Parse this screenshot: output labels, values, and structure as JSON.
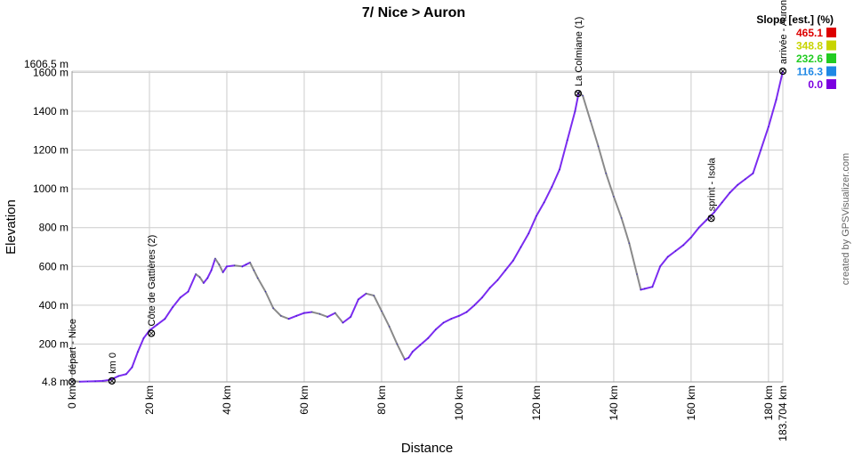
{
  "chart_data": {
    "type": "line",
    "title": "7/ Nice > Auron",
    "xlabel": "Distance",
    "ylabel": "Elevation",
    "xlim": [
      0,
      183.704
    ],
    "ylim": [
      4.8,
      1606.5
    ],
    "grid": true,
    "x_ticks": [
      {
        "value": 0,
        "label": "0 km"
      },
      {
        "value": 20,
        "label": "20 km"
      },
      {
        "value": 40,
        "label": "40 km"
      },
      {
        "value": 60,
        "label": "60 km"
      },
      {
        "value": 80,
        "label": "80 km"
      },
      {
        "value": 100,
        "label": "100 km"
      },
      {
        "value": 120,
        "label": "120 km"
      },
      {
        "value": 140,
        "label": "140 km"
      },
      {
        "value": 160,
        "label": "160 km"
      },
      {
        "value": 180,
        "label": "180 km"
      },
      {
        "value": 183.704,
        "label": "183.704 km"
      }
    ],
    "y_ticks": [
      {
        "value": 4.8,
        "label": "4.8 m"
      },
      {
        "value": 200,
        "label": "200 m"
      },
      {
        "value": 400,
        "label": "400 m"
      },
      {
        "value": 600,
        "label": "600 m"
      },
      {
        "value": 800,
        "label": "800 m"
      },
      {
        "value": 1000,
        "label": "1000 m"
      },
      {
        "value": 1200,
        "label": "1200 m"
      },
      {
        "value": 1400,
        "label": "1400 m"
      },
      {
        "value": 1600,
        "label": "1600 m"
      },
      {
        "value": 1606.5,
        "label": "1606.5 m"
      }
    ],
    "series": [
      {
        "x": [
          0,
          2,
          4,
          6,
          8,
          10,
          12,
          14,
          15.5,
          17,
          18.5,
          20,
          22,
          24,
          26,
          28,
          30,
          32,
          33,
          34,
          35,
          36,
          37,
          38,
          39,
          40,
          42,
          44,
          45,
          46,
          47,
          48,
          50,
          52,
          54,
          56,
          58,
          60,
          62,
          64,
          66,
          68,
          70,
          72,
          74,
          76,
          78,
          80,
          82,
          84,
          86,
          87,
          88,
          90,
          92,
          94,
          96,
          98,
          100,
          102,
          104,
          106,
          108,
          110,
          112,
          114,
          116,
          118,
          120,
          122,
          124,
          126,
          128,
          130,
          131,
          132,
          134,
          136,
          138,
          140,
          142,
          144,
          146,
          147,
          148,
          150,
          152,
          154,
          156,
          158,
          160,
          162,
          164,
          165,
          166,
          168,
          170,
          172,
          174,
          176,
          178,
          180,
          182,
          183.704
        ],
        "y": [
          8,
          6,
          7,
          8,
          10,
          16,
          35,
          45,
          80,
          160,
          230,
          270,
          300,
          330,
          390,
          440,
          470,
          560,
          545,
          515,
          540,
          580,
          640,
          610,
          570,
          600,
          605,
          600,
          610,
          620,
          580,
          540,
          470,
          385,
          345,
          330,
          345,
          360,
          365,
          355,
          340,
          360,
          310,
          340,
          430,
          460,
          450,
          370,
          290,
          200,
          120,
          130,
          160,
          195,
          230,
          275,
          310,
          330,
          345,
          365,
          400,
          440,
          490,
          530,
          580,
          630,
          700,
          770,
          860,
          930,
          1010,
          1100,
          1250,
          1400,
          1500,
          1480,
          1350,
          1220,
          1080,
          960,
          850,
          720,
          560,
          480,
          485,
          495,
          600,
          650,
          680,
          710,
          750,
          800,
          840,
          860,
          880,
          930,
          980,
          1020,
          1050,
          1080,
          1200,
          1320,
          1460,
          1606.5
        ],
        "color": "#7b2cf0"
      }
    ],
    "waypoints": [
      {
        "x": 0,
        "y": 4.8,
        "label": "départ - Nice"
      },
      {
        "x": 10.3,
        "y": 10,
        "label": "km 0"
      },
      {
        "x": 20.5,
        "y": 255,
        "label": "Côte de Gattières (2)"
      },
      {
        "x": 130.8,
        "y": 1492,
        "label": "La Colmiane (1)"
      },
      {
        "x": 165.2,
        "y": 848,
        "label": "sprint - Isola"
      },
      {
        "x": 183.704,
        "y": 1606.5,
        "label": "arrivée - Auron"
      }
    ],
    "legend": {
      "title": "Slope [est.] (%)",
      "placement": "top-right",
      "items": [
        {
          "label": "465.1",
          "color": "#dd0000"
        },
        {
          "label": "348.8",
          "color": "#c8d400"
        },
        {
          "label": "232.6",
          "color": "#22cc22"
        },
        {
          "label": "116.3",
          "color": "#1e88e5"
        },
        {
          "label": "0.0",
          "color": "#7b00e0"
        }
      ]
    },
    "credit": "created by GPSVisualizer.com"
  }
}
